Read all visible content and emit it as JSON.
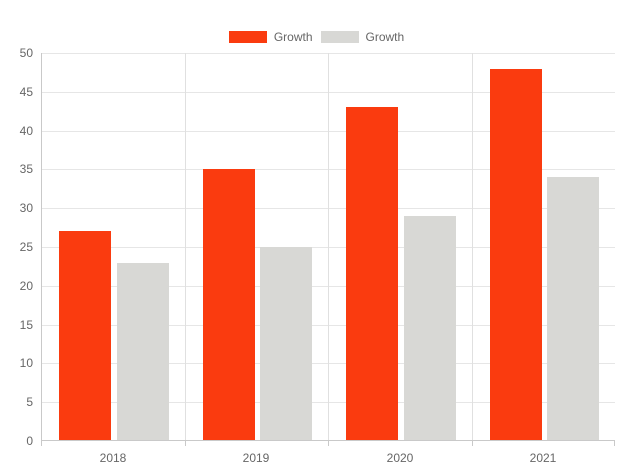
{
  "chart_data": {
    "type": "bar",
    "title": "",
    "categories": [
      "2018",
      "2019",
      "2020",
      "2021"
    ],
    "series": [
      {
        "name": "Growth",
        "color": "#fa3b0f",
        "values": [
          27,
          35,
          43,
          48
        ]
      },
      {
        "name": "Growth",
        "color": "#d8d8d5",
        "values": [
          23,
          25,
          29,
          34
        ]
      }
    ],
    "ylim": [
      0,
      50
    ],
    "yticks": [
      0,
      5,
      10,
      15,
      20,
      25,
      30,
      35,
      40,
      45,
      50
    ],
    "xlabel": "",
    "ylabel": "",
    "grid": true,
    "legend_position": "top-center"
  },
  "colors": {
    "background": "#ffffff",
    "grid_horizontal": "#e6e6e6",
    "grid_vertical": "#e0e0e0",
    "axis": "#c9c9c9",
    "label_text": "#666666"
  }
}
